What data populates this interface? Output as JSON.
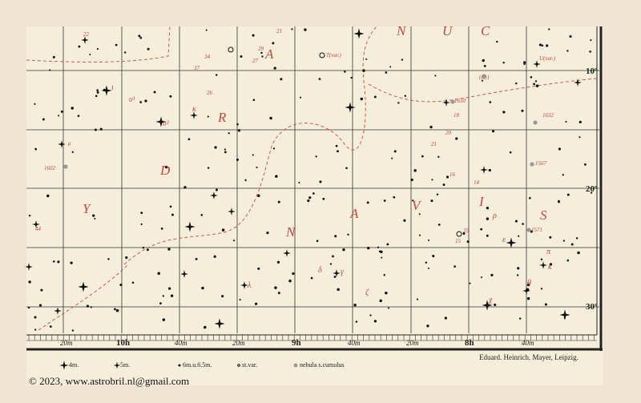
{
  "map": {
    "dec_labels": [
      "10º",
      "20º",
      "30º"
    ],
    "ra_labels": [
      "20m",
      "10h",
      "40m",
      "20m",
      "9h",
      "40m",
      "20m",
      "8h",
      "40m"
    ],
    "constellation_letters": [
      "Y",
      "D",
      "R",
      "A",
      "N",
      "A",
      "V",
      "I",
      "S",
      "N",
      "U",
      "C"
    ],
    "star_labels": [
      "ι",
      "υ¹",
      "υ²",
      "κ",
      "μ",
      "1602",
      "44",
      "22",
      "34",
      "37",
      "26",
      "27",
      "21",
      "29",
      "T(var.)",
      "λ",
      "δ",
      "γ",
      "ζ",
      "ε",
      "1630",
      "1631",
      "1632",
      "1567",
      "1571",
      "U(var.)",
      "18",
      "20",
      "21",
      "15",
      "35",
      "16",
      "14",
      "ρ",
      "π",
      "κ",
      "θ",
      "χ"
    ],
    "legend": [
      "4m.",
      "5m.",
      "6m.u.6.5m.",
      "st.var.",
      "nebula s.cumulus"
    ],
    "publisher": "Eduard. Heinrich. Mayer, Leipzig."
  },
  "copyright": "© 2023, www.astrobril.nl@gmail.com"
}
